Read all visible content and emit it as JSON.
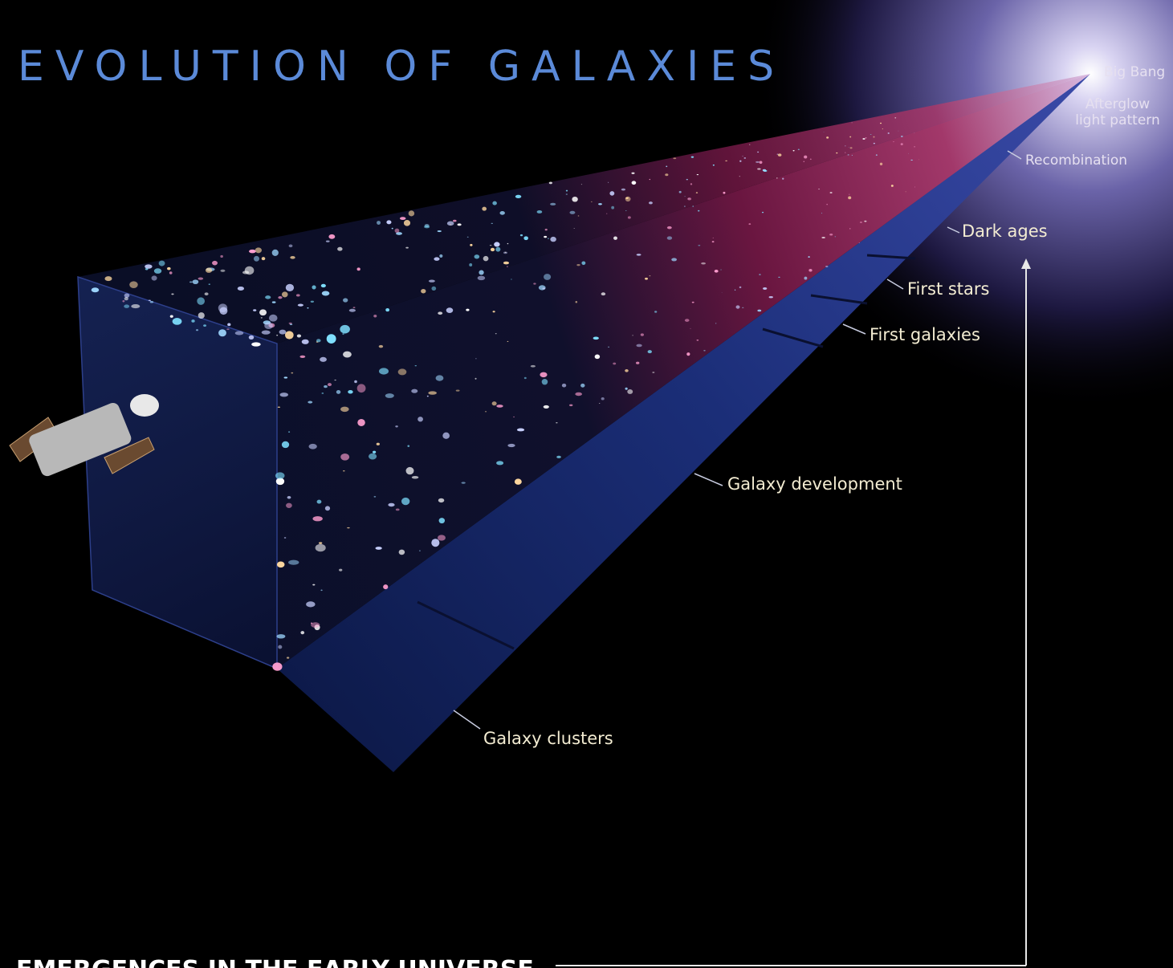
{
  "title": "EVOLUTION OF GALAXIES",
  "labels": {
    "big_bang": "Big Bang",
    "afterglow": [
      "Afterglow",
      "light pattern"
    ],
    "recombination": "Recombination",
    "dark_ages": "Dark ages",
    "first_stars": "First stars",
    "first_galaxies": "First galaxies",
    "galaxy_development": "Galaxy development",
    "galaxy_clusters": "Galaxy clusters"
  },
  "footer": "EMERGENCES IN THE EARLY UNIVERSE"
}
